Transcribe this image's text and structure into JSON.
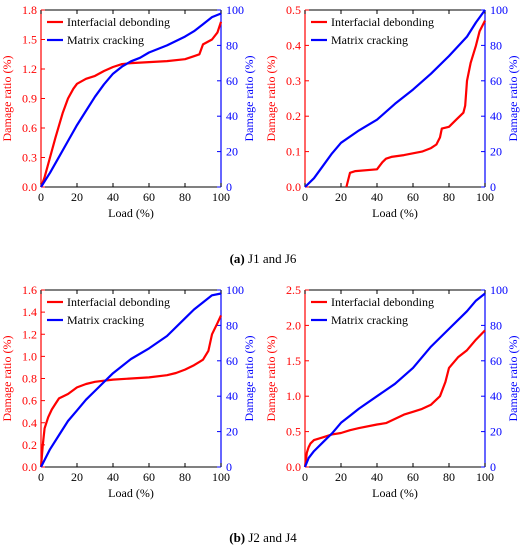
{
  "colors": {
    "interfacial": "#ff0000",
    "matrix": "#0000ff",
    "axis": "#000000"
  },
  "captions": [
    {
      "label": "(a)",
      "text": "J1 and J6"
    },
    {
      "label": "(b)",
      "text": "J2 and J4"
    }
  ],
  "chart_data": [
    {
      "type": "line",
      "xlabel": "Load (%)",
      "ylabel_left": "Damage ratio (%)",
      "ylabel_right": "Damage ratio (%)",
      "xlim": [
        0,
        100
      ],
      "xticks": [
        "0",
        "20",
        "40",
        "60",
        "80",
        "100"
      ],
      "ylim_left": [
        0,
        1.8
      ],
      "yticks_left": [
        "0.0",
        "0.3",
        "0.6",
        "0.9",
        "1.2",
        "1.5",
        "1.8"
      ],
      "ylim_right": [
        0,
        100
      ],
      "yticks_right": [
        "0",
        "20",
        "40",
        "60",
        "80",
        "100"
      ],
      "legend": "top-left",
      "series": [
        {
          "name": "Interfacial debonding",
          "axis": "left",
          "x": [
            0,
            2,
            5,
            8,
            12,
            15,
            18,
            20,
            25,
            30,
            35,
            40,
            45,
            50,
            60,
            70,
            80,
            85,
            88,
            90,
            95,
            98,
            100
          ],
          "y": [
            0.0,
            0.1,
            0.3,
            0.5,
            0.75,
            0.9,
            1.0,
            1.05,
            1.1,
            1.13,
            1.18,
            1.22,
            1.25,
            1.26,
            1.27,
            1.28,
            1.3,
            1.33,
            1.35,
            1.45,
            1.5,
            1.57,
            1.68
          ]
        },
        {
          "name": "Matrix cracking",
          "axis": "right",
          "x": [
            0,
            5,
            10,
            15,
            20,
            25,
            30,
            35,
            40,
            45,
            50,
            55,
            60,
            70,
            80,
            85,
            90,
            95,
            100
          ],
          "y": [
            0,
            8,
            17,
            26,
            35,
            43,
            51,
            58,
            64,
            68,
            71,
            73,
            76,
            80,
            85,
            88,
            92,
            96,
            98
          ]
        }
      ]
    },
    {
      "type": "line",
      "xlabel": "Load (%)",
      "ylabel_left": "Damage ratio (%)",
      "ylabel_right": "Damage ratio (%)",
      "xlim": [
        0,
        100
      ],
      "xticks": [
        "0",
        "20",
        "40",
        "60",
        "80",
        "100"
      ],
      "ylim_left": [
        0,
        0.5
      ],
      "yticks_left": [
        "0.0",
        "0.1",
        "0.2",
        "0.3",
        "0.4",
        "0.5"
      ],
      "ylim_right": [
        0,
        100
      ],
      "yticks_right": [
        "0",
        "20",
        "40",
        "60",
        "80",
        "100"
      ],
      "legend": "top-left",
      "series": [
        {
          "name": "Interfacial debonding",
          "axis": "left",
          "x": [
            23,
            24,
            25,
            28,
            40,
            43,
            45,
            48,
            55,
            65,
            70,
            73,
            75,
            76,
            80,
            84,
            86,
            88,
            89,
            90,
            92,
            95,
            97,
            100
          ],
          "y": [
            0.0,
            0.02,
            0.04,
            0.045,
            0.05,
            0.07,
            0.08,
            0.085,
            0.09,
            0.1,
            0.11,
            0.12,
            0.14,
            0.165,
            0.17,
            0.19,
            0.2,
            0.21,
            0.23,
            0.3,
            0.35,
            0.4,
            0.44,
            0.47
          ]
        },
        {
          "name": "Matrix cracking",
          "axis": "right",
          "x": [
            0,
            5,
            10,
            15,
            20,
            30,
            40,
            50,
            60,
            70,
            80,
            90,
            95,
            100
          ],
          "y": [
            0,
            5,
            12,
            19,
            25,
            32,
            38,
            47,
            55,
            64,
            74,
            85,
            93,
            100
          ]
        }
      ]
    },
    {
      "type": "line",
      "xlabel": "Load (%)",
      "ylabel_left": "Damage ratio (%)",
      "ylabel_right": "Damage ratio (%)",
      "xlim": [
        0,
        100
      ],
      "xticks": [
        "0",
        "20",
        "40",
        "60",
        "80",
        "100"
      ],
      "ylim_left": [
        0,
        1.6
      ],
      "yticks_left": [
        "0.0",
        "0.2",
        "0.4",
        "0.6",
        "0.8",
        "1.0",
        "1.2",
        "1.4",
        "1.6"
      ],
      "ylim_right": [
        0,
        100
      ],
      "yticks_right": [
        "0",
        "20",
        "40",
        "60",
        "80",
        "100"
      ],
      "legend": "top-left",
      "series": [
        {
          "name": "Interfacial debonding",
          "axis": "left",
          "x": [
            0,
            1,
            2,
            4,
            6,
            8,
            10,
            15,
            20,
            25,
            30,
            40,
            50,
            60,
            70,
            75,
            80,
            85,
            88,
            90,
            93,
            95,
            98,
            100
          ],
          "y": [
            0.0,
            0.2,
            0.35,
            0.45,
            0.52,
            0.57,
            0.62,
            0.66,
            0.72,
            0.75,
            0.77,
            0.79,
            0.8,
            0.81,
            0.83,
            0.85,
            0.88,
            0.92,
            0.95,
            0.97,
            1.05,
            1.2,
            1.3,
            1.37
          ]
        },
        {
          "name": "Matrix cracking",
          "axis": "right",
          "x": [
            0,
            5,
            10,
            15,
            20,
            25,
            30,
            35,
            40,
            45,
            50,
            60,
            70,
            80,
            85,
            90,
            95,
            100
          ],
          "y": [
            0,
            10,
            18,
            26,
            32,
            38,
            43,
            48,
            53,
            57,
            61,
            67,
            74,
            84,
            89,
            93,
            97,
            98
          ]
        }
      ]
    },
    {
      "type": "line",
      "xlabel": "Load (%)",
      "ylabel_left": "Damage ratio (%)",
      "ylabel_right": "Damage ratio (%)",
      "xlim": [
        0,
        100
      ],
      "xticks": [
        "0",
        "20",
        "40",
        "60",
        "80",
        "100"
      ],
      "ylim_left": [
        0,
        2.5
      ],
      "yticks_left": [
        "0.0",
        "0.5",
        "1.0",
        "1.5",
        "2.0",
        "2.5"
      ],
      "ylim_right": [
        0,
        100
      ],
      "yticks_right": [
        "0",
        "20",
        "40",
        "60",
        "80",
        "100"
      ],
      "legend": "top-left",
      "series": [
        {
          "name": "Interfacial debonding",
          "axis": "left",
          "x": [
            0,
            1,
            2,
            3,
            5,
            10,
            15,
            20,
            25,
            30,
            40,
            45,
            50,
            55,
            60,
            65,
            70,
            75,
            78,
            80,
            85,
            90,
            95,
            100
          ],
          "y": [
            0.0,
            0.2,
            0.28,
            0.33,
            0.38,
            0.42,
            0.46,
            0.48,
            0.52,
            0.55,
            0.6,
            0.62,
            0.68,
            0.74,
            0.78,
            0.82,
            0.88,
            1.0,
            1.2,
            1.4,
            1.55,
            1.65,
            1.8,
            1.93
          ]
        },
        {
          "name": "Matrix cracking",
          "axis": "right",
          "x": [
            0,
            2,
            5,
            10,
            15,
            20,
            25,
            30,
            40,
            50,
            60,
            70,
            80,
            90,
            95,
            100
          ],
          "y": [
            0,
            5,
            9,
            14,
            19,
            25,
            29,
            33,
            40,
            47,
            56,
            68,
            78,
            88,
            94,
            98
          ]
        }
      ]
    }
  ]
}
